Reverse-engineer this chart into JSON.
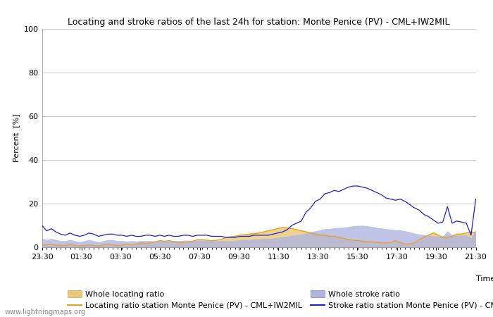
{
  "title": "Locating and stroke ratios of the last 24h for station: Monte Penice (PV) - CML+IW2MIL",
  "ylabel": "Percent  [%]",
  "xlabel": "Time",
  "ylim": [
    0,
    100
  ],
  "yticks": [
    0,
    20,
    40,
    60,
    80,
    100
  ],
  "xtick_labels": [
    "23:30",
    "01:30",
    "03:30",
    "05:30",
    "07:30",
    "09:30",
    "11:30",
    "13:30",
    "15:30",
    "17:30",
    "19:30",
    "21:30"
  ],
  "watermark": "www.lightningmaps.org",
  "locating_line_color": "#e8a020",
  "locating_fill_color": "#e8c878",
  "stroke_line_color": "#2020c8",
  "stroke_fill_color": "#b0b4e0",
  "background_color": "#ffffff",
  "grid_color": "#c8c8c8",
  "title_fontsize": 9,
  "axis_fontsize": 8,
  "tick_fontsize": 8,
  "legend_fontsize": 8,
  "locating_ratio": [
    1.2,
    1.0,
    1.5,
    1.0,
    0.8,
    0.8,
    1.2,
    0.8,
    0.6,
    0.8,
    1.0,
    0.8,
    0.6,
    1.0,
    1.2,
    1.0,
    0.8,
    1.0,
    1.5,
    1.2,
    1.5,
    2.0,
    1.8,
    2.0,
    2.5,
    3.0,
    2.8,
    3.0,
    2.5,
    2.0,
    2.2,
    2.5,
    2.8,
    3.5,
    3.5,
    3.2,
    3.0,
    3.2,
    3.5,
    4.5,
    4.8,
    5.0,
    5.5,
    5.8,
    6.0,
    6.2,
    6.5,
    7.0,
    7.5,
    8.0,
    8.5,
    9.0,
    8.8,
    8.5,
    8.0,
    7.5,
    7.0,
    6.5,
    6.0,
    5.5,
    5.5,
    5.0,
    5.0,
    4.5,
    4.0,
    3.5,
    3.2,
    3.0,
    2.8,
    2.5,
    2.5,
    2.2,
    2.0,
    2.0,
    2.2,
    3.0,
    2.0,
    1.5,
    1.5,
    2.0,
    3.5,
    4.5,
    5.5,
    6.5,
    5.5,
    4.5,
    4.5,
    5.0,
    6.0,
    6.0,
    6.5,
    7.0,
    6.5
  ],
  "locating_fill_upper": [
    1.5,
    1.2,
    1.8,
    1.2,
    1.0,
    1.0,
    1.5,
    1.0,
    0.8,
    1.0,
    1.2,
    1.0,
    0.8,
    1.2,
    1.5,
    1.2,
    1.0,
    1.2,
    1.8,
    1.5,
    1.8,
    2.2,
    2.0,
    2.2,
    2.8,
    3.2,
    3.0,
    3.2,
    2.8,
    2.2,
    2.5,
    2.8,
    3.0,
    3.8,
    3.8,
    3.5,
    3.2,
    3.5,
    3.8,
    5.0,
    5.2,
    5.5,
    6.0,
    6.2,
    6.5,
    6.8,
    7.0,
    7.5,
    8.0,
    8.5,
    9.0,
    9.5,
    9.2,
    8.8,
    8.5,
    8.0,
    7.5,
    7.0,
    6.5,
    6.0,
    6.0,
    5.5,
    5.5,
    5.0,
    4.5,
    3.8,
    3.5,
    3.2,
    3.0,
    2.8,
    2.8,
    2.5,
    2.2,
    2.2,
    2.5,
    3.2,
    2.2,
    1.8,
    1.8,
    2.2,
    3.8,
    5.0,
    6.0,
    7.0,
    6.0,
    5.0,
    5.0,
    5.5,
    6.5,
    6.5,
    7.0,
    7.5,
    7.0
  ],
  "stroke_ratio": [
    10.0,
    7.5,
    8.5,
    7.0,
    6.0,
    5.5,
    6.5,
    5.5,
    5.0,
    5.5,
    6.5,
    6.0,
    5.0,
    5.5,
    6.0,
    6.0,
    5.5,
    5.5,
    5.0,
    5.5,
    5.0,
    5.0,
    5.5,
    5.5,
    5.0,
    5.5,
    5.0,
    5.5,
    5.0,
    5.0,
    5.5,
    5.5,
    5.0,
    5.5,
    5.5,
    5.5,
    5.0,
    5.0,
    5.0,
    4.5,
    4.5,
    4.5,
    5.0,
    5.0,
    5.0,
    5.5,
    5.5,
    5.5,
    5.5,
    6.0,
    6.5,
    7.0,
    8.0,
    10.0,
    11.0,
    12.0,
    16.0,
    18.0,
    21.0,
    22.0,
    24.5,
    25.0,
    26.0,
    25.5,
    26.5,
    27.5,
    28.0,
    28.0,
    27.5,
    27.0,
    26.0,
    25.0,
    24.0,
    22.5,
    22.0,
    21.5,
    22.0,
    21.0,
    19.5,
    18.0,
    17.0,
    15.0,
    14.0,
    12.5,
    11.0,
    11.5,
    18.5,
    11.0,
    12.0,
    11.5,
    11.0,
    5.5,
    22.0
  ],
  "stroke_fill_upper": [
    4.0,
    3.5,
    4.0,
    3.5,
    3.0,
    3.0,
    3.5,
    3.0,
    2.5,
    3.0,
    3.5,
    3.0,
    2.5,
    3.0,
    3.5,
    3.5,
    3.0,
    3.0,
    2.8,
    3.0,
    2.8,
    3.0,
    3.0,
    3.0,
    2.8,
    3.2,
    3.0,
    3.2,
    3.0,
    3.0,
    3.2,
    3.2,
    3.0,
    3.2,
    3.2,
    3.2,
    3.0,
    3.0,
    3.0,
    3.0,
    3.0,
    3.0,
    3.5,
    3.5,
    3.5,
    3.8,
    3.8,
    4.0,
    4.0,
    4.2,
    4.5,
    4.8,
    5.0,
    5.5,
    5.8,
    6.0,
    6.5,
    7.0,
    7.5,
    8.0,
    8.5,
    8.5,
    9.0,
    9.0,
    9.2,
    9.5,
    9.8,
    10.0,
    10.0,
    9.8,
    9.5,
    9.0,
    8.8,
    8.5,
    8.2,
    8.0,
    8.0,
    7.5,
    7.0,
    6.5,
    6.0,
    5.8,
    5.5,
    5.2,
    5.0,
    5.2,
    7.5,
    5.5,
    5.5,
    5.5,
    5.5,
    4.5,
    8.0
  ]
}
